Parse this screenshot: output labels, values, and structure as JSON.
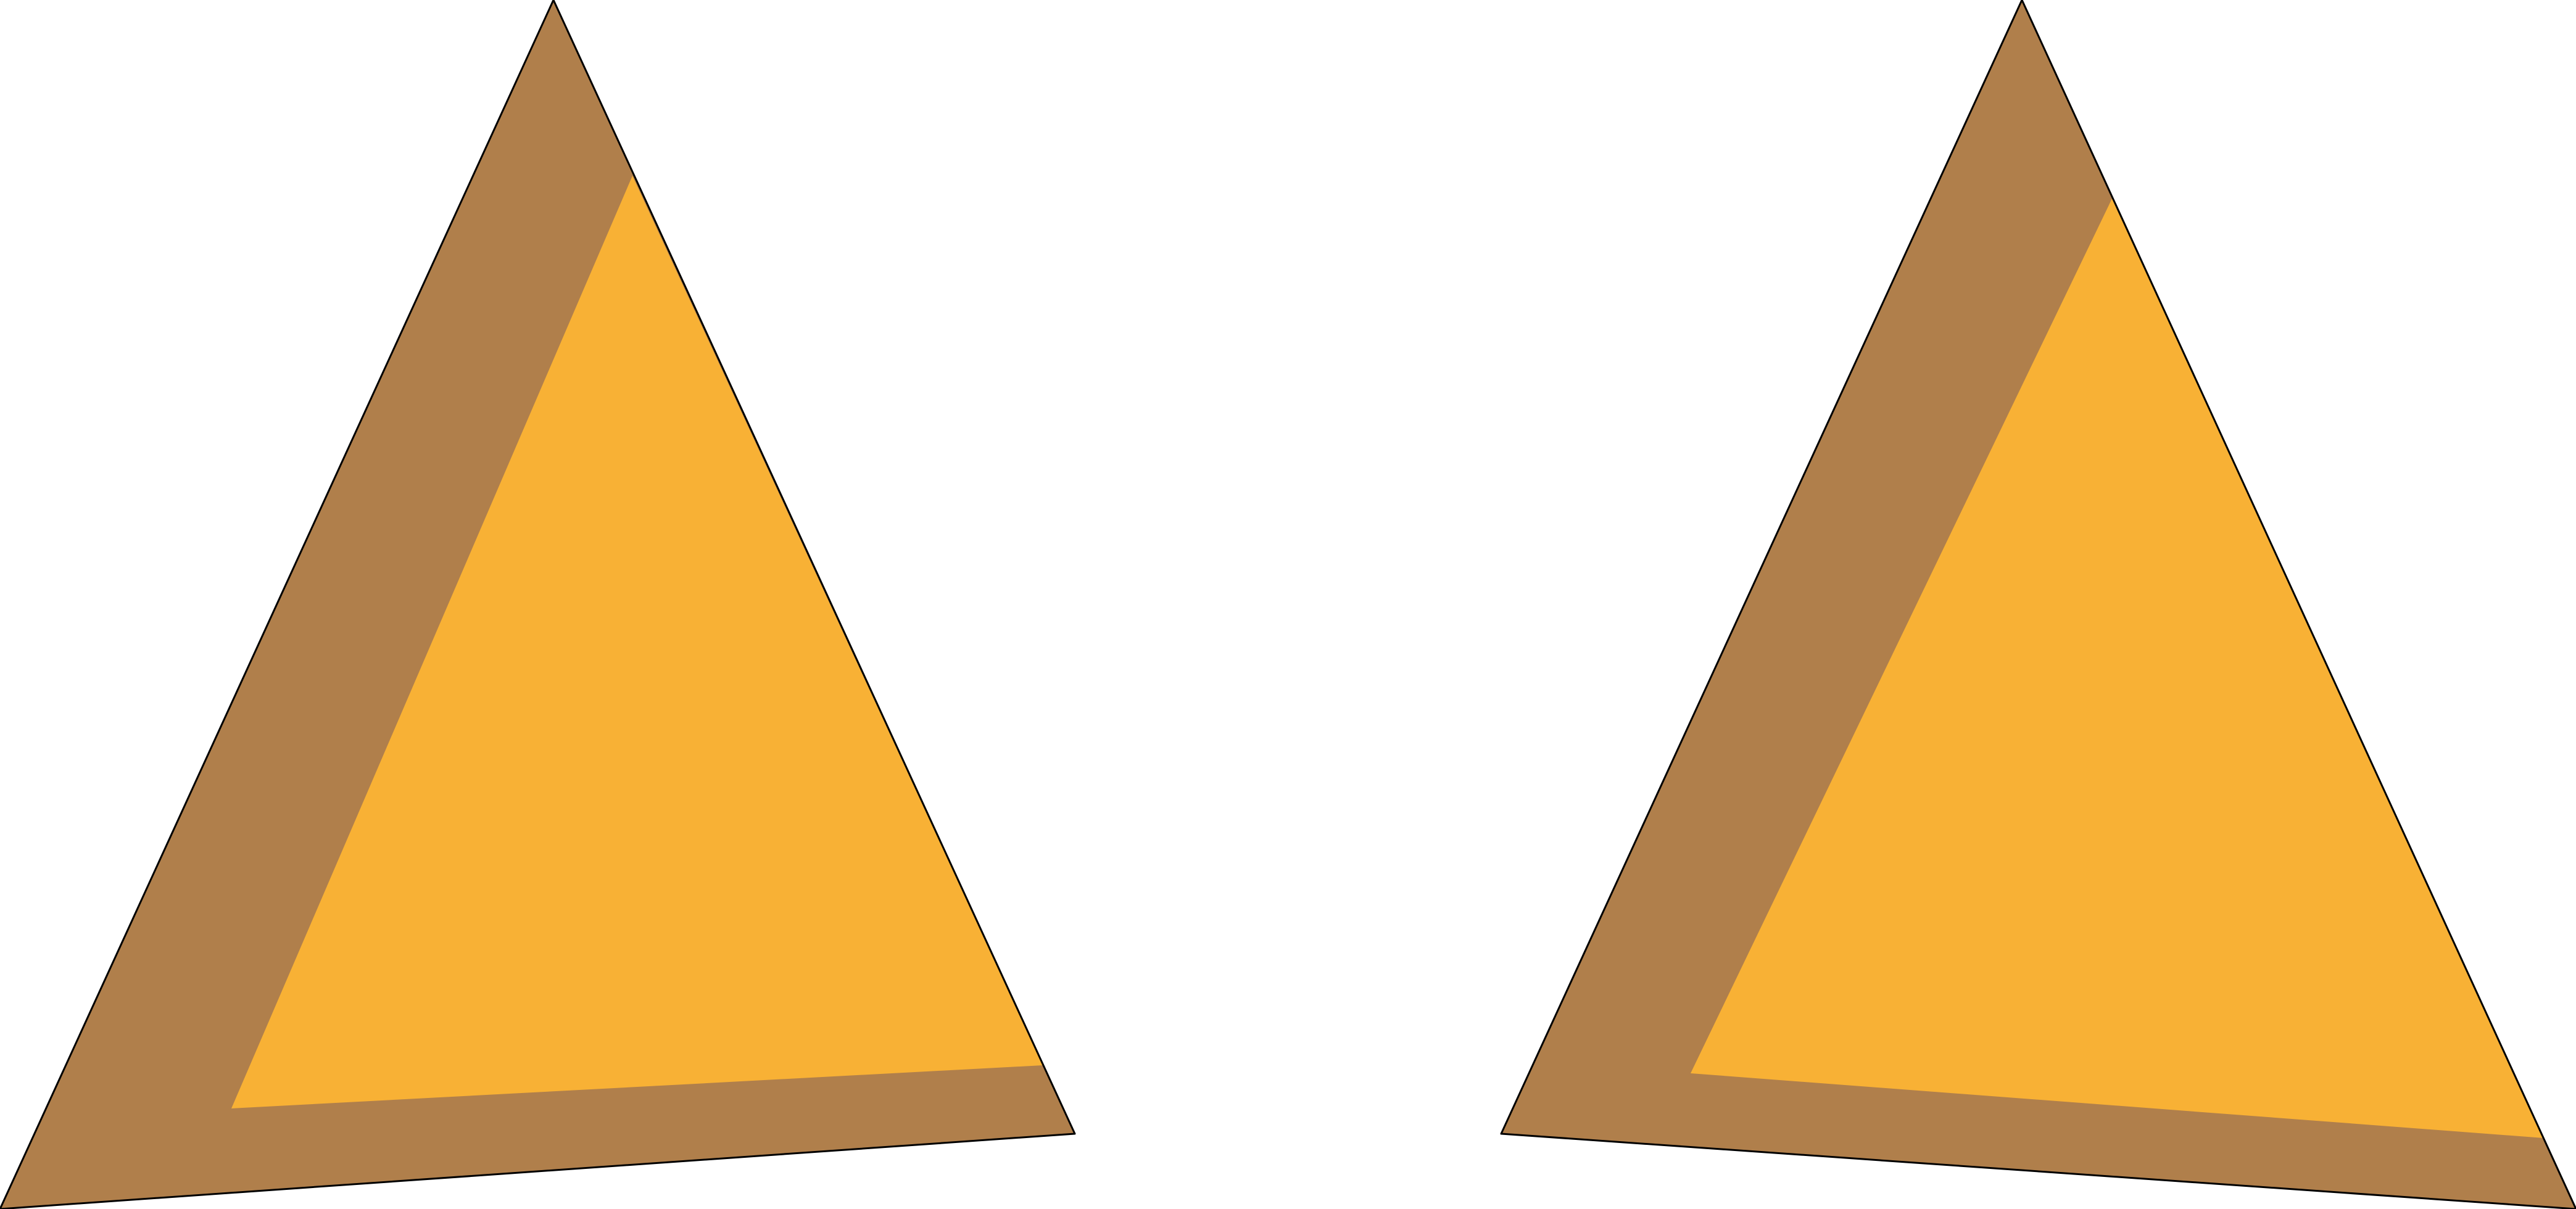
{
  "colors": {
    "background": "#ffffff",
    "outer_fill": "#b07f4b",
    "inner_fill": "#f8b135",
    "outline": "#000000"
  },
  "shapes": [
    {
      "name": "left-triangle",
      "description_icon": "triangle-icon"
    },
    {
      "name": "right-triangle",
      "description_icon": "triangle-icon"
    }
  ]
}
